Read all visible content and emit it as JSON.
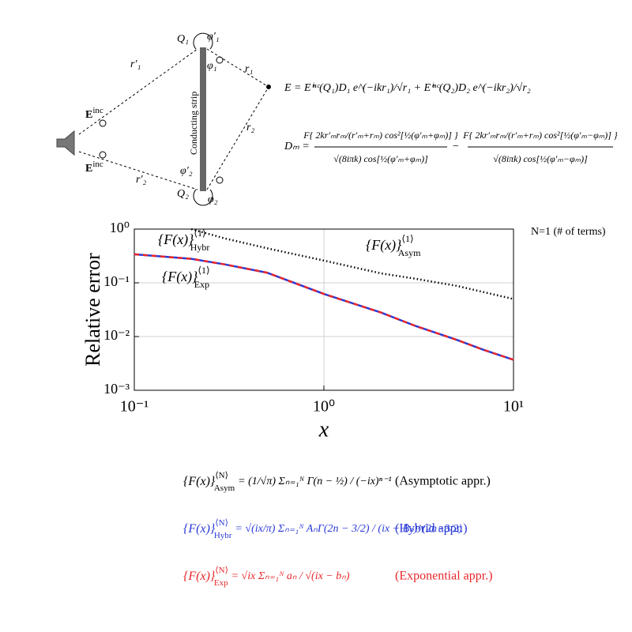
{
  "diagram": {
    "q1": "Q₁",
    "q2": "Q₂",
    "phi1p": "φ′₁",
    "phi1": "φ₁",
    "phi2p": "φ′₂",
    "phi2": "φ₂",
    "r1p": "r′₁",
    "r1": "r₁",
    "r2p": "r′₂",
    "r2": "r₂",
    "einc_top": "E",
    "einc_top_sup": "inc",
    "einc_bot": "E",
    "einc_bot_sup": "inc",
    "strip": "Conducting strip"
  },
  "top_equations": {
    "field": "E = Eⁱⁿᶜ(Q₁)D₁ e^(−ikr₁)/√r₁ + Eⁱⁿᶜ(Q₂)D₂ e^(−ikr₂)/√r₂",
    "dm_lhs": "Dₘ =",
    "num1": "F{ 2kr′ₘrₘ/(r′ₘ+rₘ) cos²[½(φ′ₘ+φₘ)] }",
    "den1": "√(8iπk) cos[½(φ′ₘ+φₘ)]",
    "minus": "−",
    "num2": "F{ 2kr′ₘrₘ/(r′ₘ+rₘ) cos²[½(φ′ₘ−φₘ)] }",
    "den2": "√(8iπk) cos[½(φ′ₘ−φₘ)]"
  },
  "chart_data": {
    "type": "line",
    "xlabel": "x",
    "ylabel": "Relative error",
    "note": "N=1 (# of terms)",
    "label_base": "{F(x)}",
    "label_sup": "⟨1⟩",
    "xlog": true,
    "ylog": true,
    "grid": true,
    "xlim": [
      0.1,
      10
    ],
    "ylim": [
      0.001,
      1
    ],
    "xticks": [
      {
        "value": 0.1,
        "label": "10⁻¹"
      },
      {
        "value": 1,
        "label": "10⁰"
      },
      {
        "value": 10,
        "label": "10¹"
      }
    ],
    "yticks": [
      {
        "value": 0.001,
        "label": "10⁻³"
      },
      {
        "value": 0.01,
        "label": "10⁻²"
      },
      {
        "value": 0.1,
        "label": "10⁻¹"
      },
      {
        "value": 1,
        "label": "10⁰"
      }
    ],
    "series": [
      {
        "name": "Hybr",
        "color": "#2a3ad6",
        "x": [
          0.1,
          0.2,
          0.3,
          0.5,
          1,
          2,
          3,
          5,
          7,
          10
        ],
        "values": [
          0.34,
          0.28,
          0.22,
          0.155,
          0.062,
          0.028,
          0.016,
          0.0087,
          0.0056,
          0.0037
        ]
      },
      {
        "name": "Exp",
        "color": "#e8272a",
        "x": [
          0.1,
          0.2,
          0.3,
          0.5,
          1,
          2,
          3,
          5,
          7,
          10
        ],
        "values": [
          0.34,
          0.28,
          0.22,
          0.155,
          0.062,
          0.028,
          0.016,
          0.0087,
          0.0056,
          0.0037
        ]
      },
      {
        "name": "Asym",
        "color": "#000000",
        "x": [
          0.2,
          0.3,
          0.5,
          1,
          2,
          3,
          5,
          10
        ],
        "values": [
          1.0,
          0.67,
          0.44,
          0.26,
          0.15,
          0.12,
          0.088,
          0.05
        ]
      }
    ]
  },
  "bottom_equations": [
    {
      "lhs": "{F(x)}",
      "sup": "⟨N⟩",
      "sub": "Asym",
      "rhs": "= (1/√π) Σₙ₌₁ᴺ Γ(n − ½) / (−ix)ⁿ⁻¹",
      "note": "(Asymptotic appr.)",
      "color": "#000000"
    },
    {
      "lhs": "{F(x)}",
      "sup": "⟨N⟩",
      "sub": "Hybr",
      "rhs": "= √(ix/π) Σₙ₌₁ᴺ AₙΓ(2n − 3/2) / (ix − Bₙ)^(2n−3/2)",
      "note": "(Hybrid appr.)",
      "color": "#2a3ad6"
    },
    {
      "lhs": "{F(x)}",
      "sup": "⟨N⟩",
      "sub": "Exp",
      "rhs": "= √ix Σₙ₌₁ᴺ aₙ / √(ix − bₙ)",
      "note": "(Exponential appr.)",
      "color": "#e8272a"
    }
  ]
}
